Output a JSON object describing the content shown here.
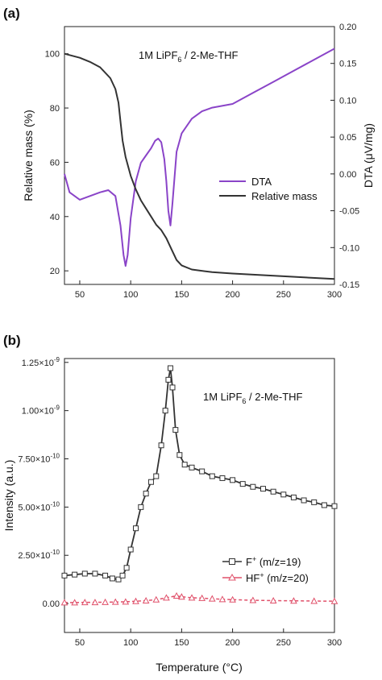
{
  "chart_data": [
    {
      "type": "line",
      "panel_label": "(a)",
      "annotation": {
        "main": "1M LiPF",
        "sub": "6",
        "rest": " / 2-Me-THF"
      },
      "xlabel": "",
      "ylabel": "Relative mass (%)",
      "y2label": "DTA (μV/mg)",
      "xlim": [
        35,
        300
      ],
      "ylim": [
        15,
        110
      ],
      "y2lim": [
        -0.15,
        0.2
      ],
      "x_ticks": [
        50,
        100,
        150,
        200,
        250,
        300
      ],
      "y_ticks": [
        20,
        40,
        60,
        80,
        100
      ],
      "y2_ticks": [
        "0.20",
        "0.15",
        "0.10",
        "0.05",
        "0.00",
        "-0.05",
        "-0.10",
        "-0.15"
      ],
      "y2_tick_values": [
        0.2,
        0.15,
        0.1,
        0.05,
        0.0,
        -0.05,
        -0.1,
        -0.15
      ],
      "legend_position": "center-right",
      "series": [
        {
          "name": "DTA",
          "axis": "right",
          "color": "#8a44c8",
          "x": [
            35,
            40,
            50,
            60,
            70,
            78,
            85,
            90,
            93,
            95,
            97,
            100,
            105,
            110,
            115,
            120,
            124,
            127,
            130,
            133,
            135,
            137,
            139,
            141,
            145,
            150,
            155,
            160,
            170,
            180,
            200,
            220,
            240,
            260,
            280,
            300
          ],
          "y": [
            0.0,
            -0.025,
            -0.035,
            -0.03,
            -0.025,
            -0.022,
            -0.03,
            -0.07,
            -0.11,
            -0.125,
            -0.11,
            -0.06,
            -0.01,
            0.015,
            0.025,
            0.035,
            0.045,
            0.048,
            0.043,
            0.02,
            -0.01,
            -0.05,
            -0.07,
            -0.04,
            0.03,
            0.055,
            0.065,
            0.075,
            0.085,
            0.09,
            0.095,
            0.11,
            0.125,
            0.14,
            0.155,
            0.17
          ]
        },
        {
          "name": "Relative mass",
          "axis": "left",
          "color": "#333333",
          "x": [
            35,
            50,
            60,
            70,
            80,
            85,
            88,
            90,
            92,
            95,
            100,
            105,
            110,
            115,
            120,
            125,
            130,
            135,
            140,
            145,
            150,
            160,
            180,
            200,
            250,
            300
          ],
          "y": [
            100,
            98.5,
            97,
            95,
            91,
            87,
            82,
            75,
            68,
            62,
            55,
            50,
            46,
            43,
            40,
            37,
            35,
            32,
            28,
            24,
            22,
            20.5,
            19.5,
            19,
            18,
            17
          ]
        }
      ]
    },
    {
      "type": "line",
      "panel_label": "(b)",
      "annotation": {
        "main": "1M LiPF",
        "sub": "6",
        "rest": " / 2-Me-THF"
      },
      "xlabel": "Temperature (°C)",
      "ylabel": "Intensity (a.u.)",
      "xlim": [
        35,
        300
      ],
      "ylim": [
        -1.5e-10,
        1.27e-09
      ],
      "x_ticks": [
        50,
        100,
        150,
        200,
        250,
        300
      ],
      "y_ticks": [
        0,
        2.5e-10,
        5e-10,
        7.5e-10,
        1e-09,
        1.25e-09
      ],
      "y_tick_labels": [
        {
          "base": "0.00",
          "exp": ""
        },
        {
          "base": "2.50×10",
          "exp": "-10"
        },
        {
          "base": "5.00×10",
          "exp": "-10"
        },
        {
          "base": "7.50×10",
          "exp": "-10"
        },
        {
          "base": "1.00×10",
          "exp": "-9"
        },
        {
          "base": "1.25×10",
          "exp": "-9"
        }
      ],
      "legend_position": "lower-right",
      "legend": [
        {
          "label_main": "F",
          "sup": "+",
          "label_rest": " (m/z=19)"
        },
        {
          "label_main": "HF",
          "sup": "+",
          "label_rest": " (m/z=20)"
        }
      ],
      "series": [
        {
          "name": "F+ (m/z=19)",
          "color": "#333333",
          "marker": "square",
          "x": [
            35,
            45,
            55,
            65,
            75,
            82,
            88,
            92,
            96,
            100,
            105,
            110,
            115,
            120,
            125,
            130,
            134,
            137,
            139,
            141,
            144,
            148,
            153,
            160,
            170,
            180,
            190,
            200,
            210,
            220,
            230,
            240,
            250,
            260,
            270,
            280,
            290,
            300
          ],
          "y": [
            1.45e-10,
            1.5e-10,
            1.55e-10,
            1.55e-10,
            1.45e-10,
            1.3e-10,
            1.25e-10,
            1.45e-10,
            1.85e-10,
            2.8e-10,
            3.9e-10,
            5e-10,
            5.7e-10,
            6.3e-10,
            6.6e-10,
            8.2e-10,
            1e-09,
            1.16e-09,
            1.22e-09,
            1.12e-09,
            9e-10,
            7.7e-10,
            7.2e-10,
            7.05e-10,
            6.85e-10,
            6.6e-10,
            6.5e-10,
            6.4e-10,
            6.2e-10,
            6.05e-10,
            5.95e-10,
            5.8e-10,
            5.65e-10,
            5.5e-10,
            5.35e-10,
            5.25e-10,
            5.1e-10,
            5.05e-10
          ]
        },
        {
          "name": "HF+ (m/z=20)",
          "color": "#e0506a",
          "marker": "triangle",
          "x": [
            35,
            45,
            55,
            65,
            75,
            85,
            95,
            105,
            115,
            125,
            135,
            145,
            150,
            160,
            170,
            180,
            190,
            200,
            220,
            240,
            260,
            280,
            300
          ],
          "y": [
            5e-12,
            5e-12,
            6e-12,
            6e-12,
            7e-12,
            8e-12,
            9e-12,
            1.2e-11,
            1.5e-11,
            2e-11,
            3e-11,
            4e-11,
            3.5e-11,
            3e-11,
            2.8e-11,
            2.5e-11,
            2.2e-11,
            2e-11,
            1.7e-11,
            1.5e-11,
            1.4e-11,
            1.3e-11,
            1.2e-11
          ]
        }
      ]
    }
  ]
}
